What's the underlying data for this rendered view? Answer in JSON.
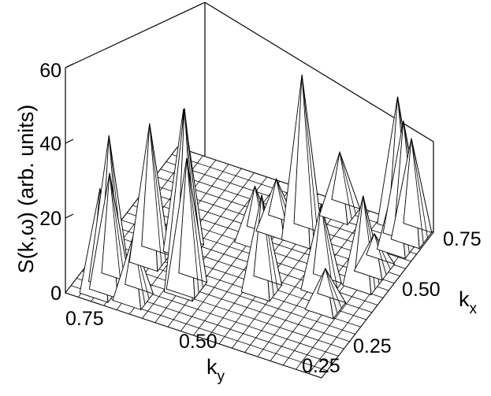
{
  "chart_data": {
    "type": "surface",
    "ylabel": "S(k,ω)  (arb. units)",
    "kx_label": {
      "main": "k",
      "sub": "x"
    },
    "ky_label": {
      "main": "k",
      "sub": "y"
    },
    "z_ticks": [
      "0",
      "20",
      "40",
      "60"
    ],
    "kx_ticks": [
      "0.25",
      "0.50",
      "0.75"
    ],
    "ky_ticks": [
      "0.75",
      "0.50",
      "0.25"
    ],
    "z_range": [
      0,
      60
    ],
    "kx_range": [
      0.25,
      0.75
    ],
    "ky_range": [
      0.25,
      0.75
    ],
    "grid_n": 20,
    "peaks": [
      {
        "kx": 0.33,
        "ky": 0.7,
        "height": 38
      },
      {
        "kx": 0.31,
        "ky": 0.69,
        "height": 30
      },
      {
        "kx": 0.29,
        "ky": 0.7,
        "height": 27
      },
      {
        "kx": 0.42,
        "ky": 0.66,
        "height": 36
      },
      {
        "kx": 0.48,
        "ky": 0.62,
        "height": 37
      },
      {
        "kx": 0.57,
        "ky": 0.52,
        "height": 14
      },
      {
        "kx": 0.62,
        "ky": 0.5,
        "height": 13
      },
      {
        "kx": 0.62,
        "ky": 0.45,
        "height": 43
      },
      {
        "kx": 0.72,
        "ky": 0.42,
        "height": 16
      },
      {
        "kx": 0.75,
        "ky": 0.32,
        "height": 33
      },
      {
        "kx": 0.73,
        "ky": 0.3,
        "height": 29
      },
      {
        "kx": 0.72,
        "ky": 0.28,
        "height": 26
      },
      {
        "kx": 0.68,
        "ky": 0.29,
        "height": 20
      },
      {
        "kx": 0.3,
        "ky": 0.64,
        "height": 16
      },
      {
        "kx": 0.37,
        "ky": 0.57,
        "height": 48
      },
      {
        "kx": 0.38,
        "ky": 0.57,
        "height": 34
      },
      {
        "kx": 0.44,
        "ky": 0.45,
        "height": 25
      },
      {
        "kx": 0.45,
        "ky": 0.33,
        "height": 10
      },
      {
        "kx": 0.5,
        "ky": 0.36,
        "height": 22
      },
      {
        "kx": 0.55,
        "ky": 0.3,
        "height": 23
      },
      {
        "kx": 0.6,
        "ky": 0.3,
        "height": 9
      }
    ]
  }
}
